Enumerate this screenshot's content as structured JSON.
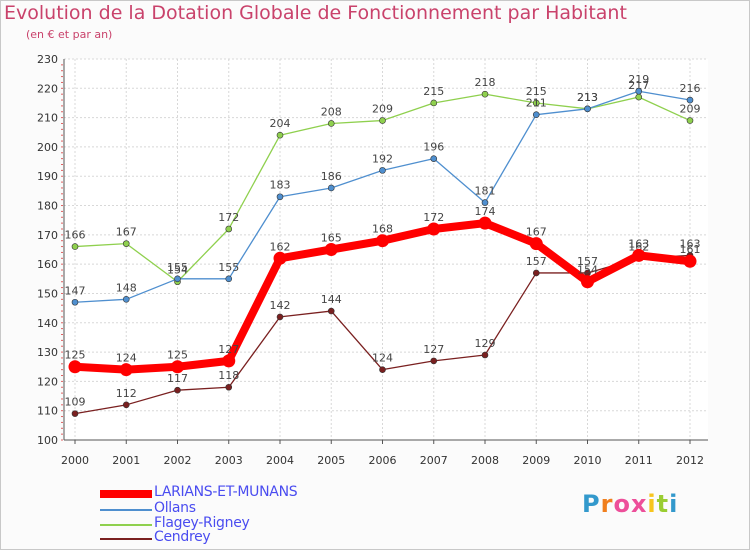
{
  "title": "Evolution de la Dotation Globale de Fonctionnement par Habitant",
  "subtitle": "(en € et par an)",
  "logo": {
    "text": "Proxiti",
    "letters": [
      "P",
      "r",
      "o",
      "x",
      "i",
      "t",
      "i"
    ],
    "colors": [
      "#3399cc",
      "#f07f1e",
      "#ed4f9a",
      "#ed4f9a",
      "#f7c51e",
      "#9acd32",
      "#3399cc"
    ]
  },
  "chart_data": {
    "type": "line",
    "title": "Evolution de la Dotation Globale de Fonctionnement par Habitant",
    "subtitle": "(en € et par an)",
    "x": [
      "2000",
      "2001",
      "2002",
      "2003",
      "2004",
      "2005",
      "2006",
      "2007",
      "2008",
      "2009",
      "2010",
      "2011",
      "2012"
    ],
    "ylim": [
      100,
      230
    ],
    "yticks": [
      100,
      110,
      120,
      130,
      140,
      150,
      160,
      170,
      180,
      190,
      200,
      210,
      220,
      230
    ],
    "grid": true,
    "legend_position": "bottom-left",
    "series": [
      {
        "name": "Cendrey",
        "color": "#7a2020",
        "values": [
          109,
          112,
          117,
          118,
          142,
          144,
          124,
          127,
          129,
          157,
          157,
          162,
          163
        ]
      },
      {
        "name": "Flagey-Rigney",
        "color": "#8fd04e",
        "values": [
          166,
          167,
          154,
          172,
          204,
          208,
          209,
          215,
          218,
          215,
          213,
          217,
          209
        ]
      },
      {
        "name": "Ollans",
        "color": "#4f8fcf",
        "values": [
          147,
          148,
          155,
          155,
          183,
          186,
          192,
          196,
          181,
          211,
          213,
          219,
          216
        ]
      },
      {
        "name": "LARIANS-ET-MUNANS",
        "color": "#ff0000",
        "values": [
          125,
          124,
          125,
          127,
          162,
          165,
          168,
          172,
          174,
          167,
          154,
          163,
          161
        ]
      }
    ],
    "legend": [
      "LARIANS-ET-MUNANS",
      "Ollans",
      "Flagey-Rigney",
      "Cendrey"
    ]
  }
}
